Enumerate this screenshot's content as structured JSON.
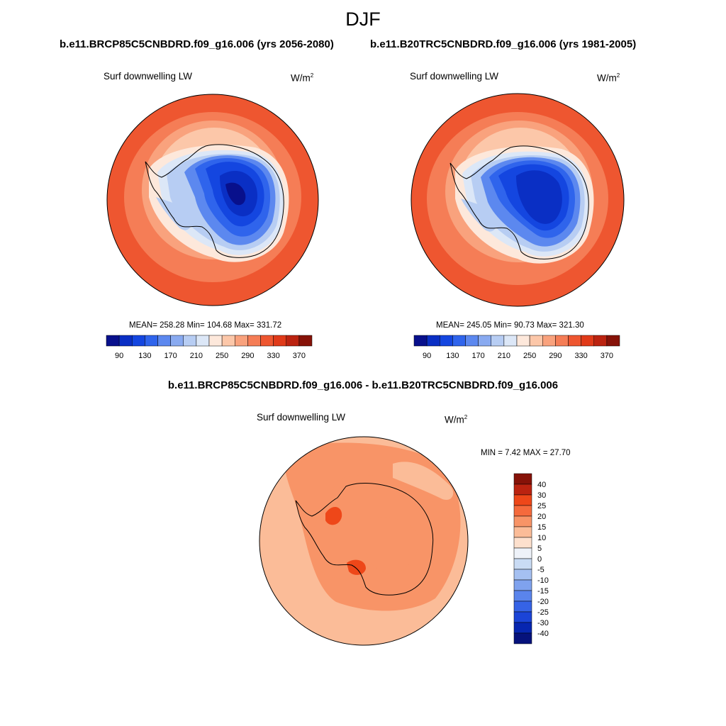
{
  "title": "DJF",
  "panels": [
    {
      "case_title": "b.e11.BRCP85C5CNBDRD.f09_g16.006 (yrs 2056-2080)",
      "var_label": "Surf downwelling LW",
      "units": "W/m",
      "units_sup": "2",
      "stats": "MEAN= 258.28  Min= 104.68  Max= 331.72",
      "colorbar_labels": [
        "90",
        "130",
        "170",
        "210",
        "250",
        "290",
        "330",
        "370"
      ]
    },
    {
      "case_title": "b.e11.B20TRC5CNBDRD.f09_g16.006 (yrs 1981-2005)",
      "var_label": "Surf downwelling LW",
      "units": "W/m",
      "units_sup": "2",
      "stats": "MEAN= 245.05  Min=  90.73  Max= 321.30",
      "colorbar_labels": [
        "90",
        "130",
        "170",
        "210",
        "250",
        "290",
        "330",
        "370"
      ]
    }
  ],
  "diff": {
    "title": "b.e11.BRCP85C5CNBDRD.f09_g16.006 - b.e11.B20TRC5CNBDRD.f09_g16.006",
    "var_label": "Surf downwelling LW",
    "units": "W/m",
    "units_sup": "2",
    "minmax": "MIN =   7.42 MAX =  27.70",
    "colorbar_labels": [
      "40",
      "30",
      "25",
      "20",
      "15",
      "10",
      "5",
      "0",
      "-5",
      "-10",
      "-15",
      "-20",
      "-25",
      "-30",
      "-40"
    ]
  },
  "colors": {
    "abs_scale": [
      "#08108c",
      "#0a2fc4",
      "#1446e0",
      "#2f64ec",
      "#5c88ef",
      "#89aaf0",
      "#b7cdf3",
      "#dce7f7",
      "#fde8db",
      "#fcc7a9",
      "#f9a27d",
      "#f57d56",
      "#ee5630",
      "#e03a19",
      "#bb2310",
      "#861208"
    ],
    "diff_scale": [
      "#861208",
      "#bb2310",
      "#ee4719",
      "#f56a3c",
      "#f89467",
      "#fbbc98",
      "#fde0cd",
      "#eef2f9",
      "#c9dbf4",
      "#a5c0f1",
      "#7fa2ee",
      "#5a84ec",
      "#3663e6",
      "#1b44d7",
      "#0726b0",
      "#06127c"
    ]
  }
}
